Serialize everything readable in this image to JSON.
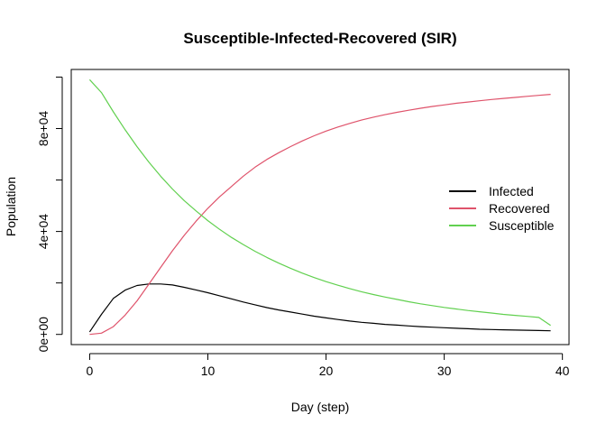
{
  "chart_data": {
    "type": "line",
    "title": "Susceptible-Infected-Recovered (SIR)",
    "xlabel": "Day (step)",
    "ylabel": "Population",
    "xlim": [
      -1.56,
      40.56
    ],
    "ylim": [
      -3960,
      102960
    ],
    "x_ticks": [
      0,
      10,
      20,
      30,
      40
    ],
    "x_tick_labels": [
      "0",
      "10",
      "20",
      "30",
      "40"
    ],
    "y_ticks": [
      0,
      20000,
      40000,
      60000,
      80000,
      100000
    ],
    "y_tick_labels": [
      "0e+00",
      "",
      "4e+04",
      "",
      "8e+04",
      ""
    ],
    "grid": false,
    "legend_position": "right",
    "x": [
      0,
      1,
      2,
      3,
      4,
      5,
      6,
      7,
      8,
      9,
      10,
      11,
      12,
      13,
      14,
      15,
      16,
      17,
      18,
      19,
      20,
      21,
      22,
      23,
      24,
      25,
      26,
      27,
      28,
      29,
      30,
      31,
      32,
      33,
      34,
      35,
      36,
      37,
      38,
      39
    ],
    "series": [
      {
        "name": "Infected",
        "color": "#000000",
        "values": [
          1000,
          7800,
          14000,
          17200,
          19000,
          19600,
          19600,
          19200,
          18300,
          17300,
          16200,
          15000,
          13800,
          12600,
          11500,
          10400,
          9500,
          8700,
          7900,
          7100,
          6400,
          5800,
          5200,
          4700,
          4300,
          3900,
          3600,
          3300,
          3000,
          2800,
          2600,
          2400,
          2200,
          2000,
          1900,
          1800,
          1700,
          1600,
          1500,
          1400
        ]
      },
      {
        "name": "Recovered",
        "color": "#DF536B",
        "values": [
          0,
          500,
          3000,
          7500,
          13000,
          19500,
          26000,
          32500,
          38500,
          44000,
          49000,
          53500,
          57500,
          61500,
          65000,
          68000,
          70600,
          73000,
          75200,
          77200,
          79000,
          80600,
          82000,
          83300,
          84400,
          85400,
          86300,
          87100,
          87900,
          88600,
          89200,
          89800,
          90300,
          90800,
          91300,
          91700,
          92100,
          92500,
          92900,
          93300
        ]
      },
      {
        "name": "Susceptible",
        "color": "#61D04F",
        "values": [
          99000,
          94000,
          86500,
          79500,
          73000,
          67000,
          61500,
          56500,
          52000,
          48000,
          44200,
          40800,
          37700,
          34900,
          32300,
          29900,
          27700,
          25700,
          23800,
          22100,
          20500,
          19100,
          17800,
          16600,
          15500,
          14500,
          13600,
          12700,
          11900,
          11200,
          10500,
          9900,
          9300,
          8800,
          8300,
          7800,
          7400,
          7000,
          6600,
          3500
        ]
      }
    ]
  }
}
